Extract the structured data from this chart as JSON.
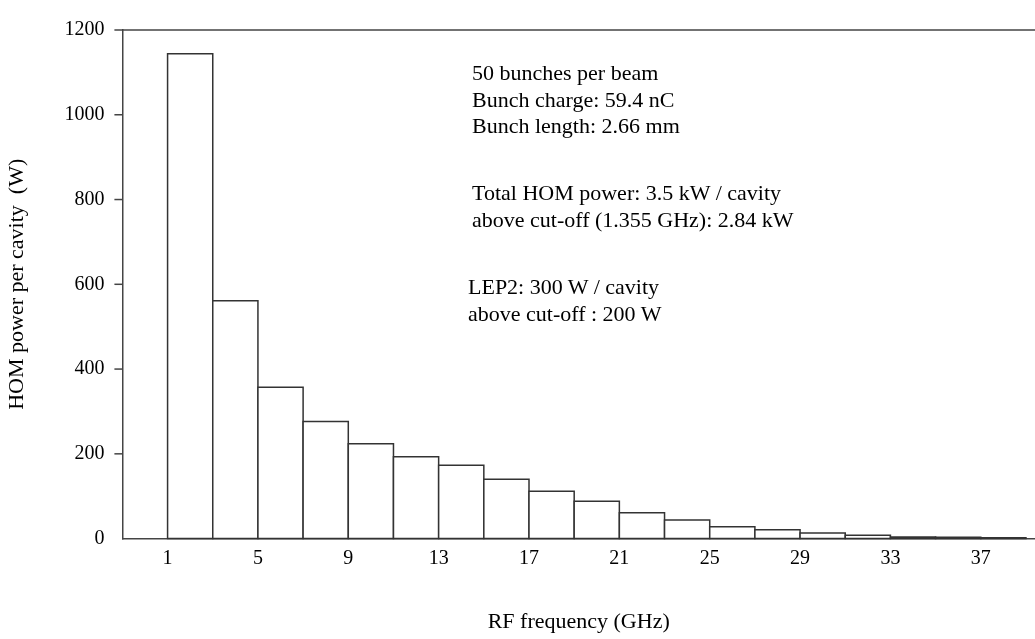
{
  "chart_data": {
    "type": "histogram",
    "xlabel": "RF frequency (GHz)",
    "ylabel": "HOM power per cavity  (W)",
    "bins": [
      1,
      3,
      5,
      7,
      9,
      11,
      13,
      15,
      17,
      19,
      21,
      23,
      25,
      27,
      29,
      31,
      33,
      35,
      37,
      39
    ],
    "values": [
      1144,
      561,
      357,
      276,
      224,
      193,
      173,
      140,
      112,
      88,
      61,
      44,
      28,
      21,
      13,
      8,
      4,
      3,
      2
    ],
    "color": "#ffffff",
    "xlim": [
      -1,
      39.4
    ],
    "xticks": [
      1,
      5,
      9,
      13,
      17,
      21,
      25,
      29,
      33,
      37
    ],
    "ylim": [
      0,
      1200
    ],
    "yticks": [
      0,
      200,
      400,
      600,
      800,
      1000,
      1200
    ],
    "grid": false,
    "annotations": [
      "50 bunches per beam",
      "Bunch charge: 59.4 nC",
      "Bunch length: 2.66 mm",
      "Total HOM power: 3.5 kW / cavity",
      "above cut-off (1.355 GHz): 2.84 kW",
      "LEP2: 300 W / cavity",
      "above cut-off : 200 W"
    ]
  }
}
